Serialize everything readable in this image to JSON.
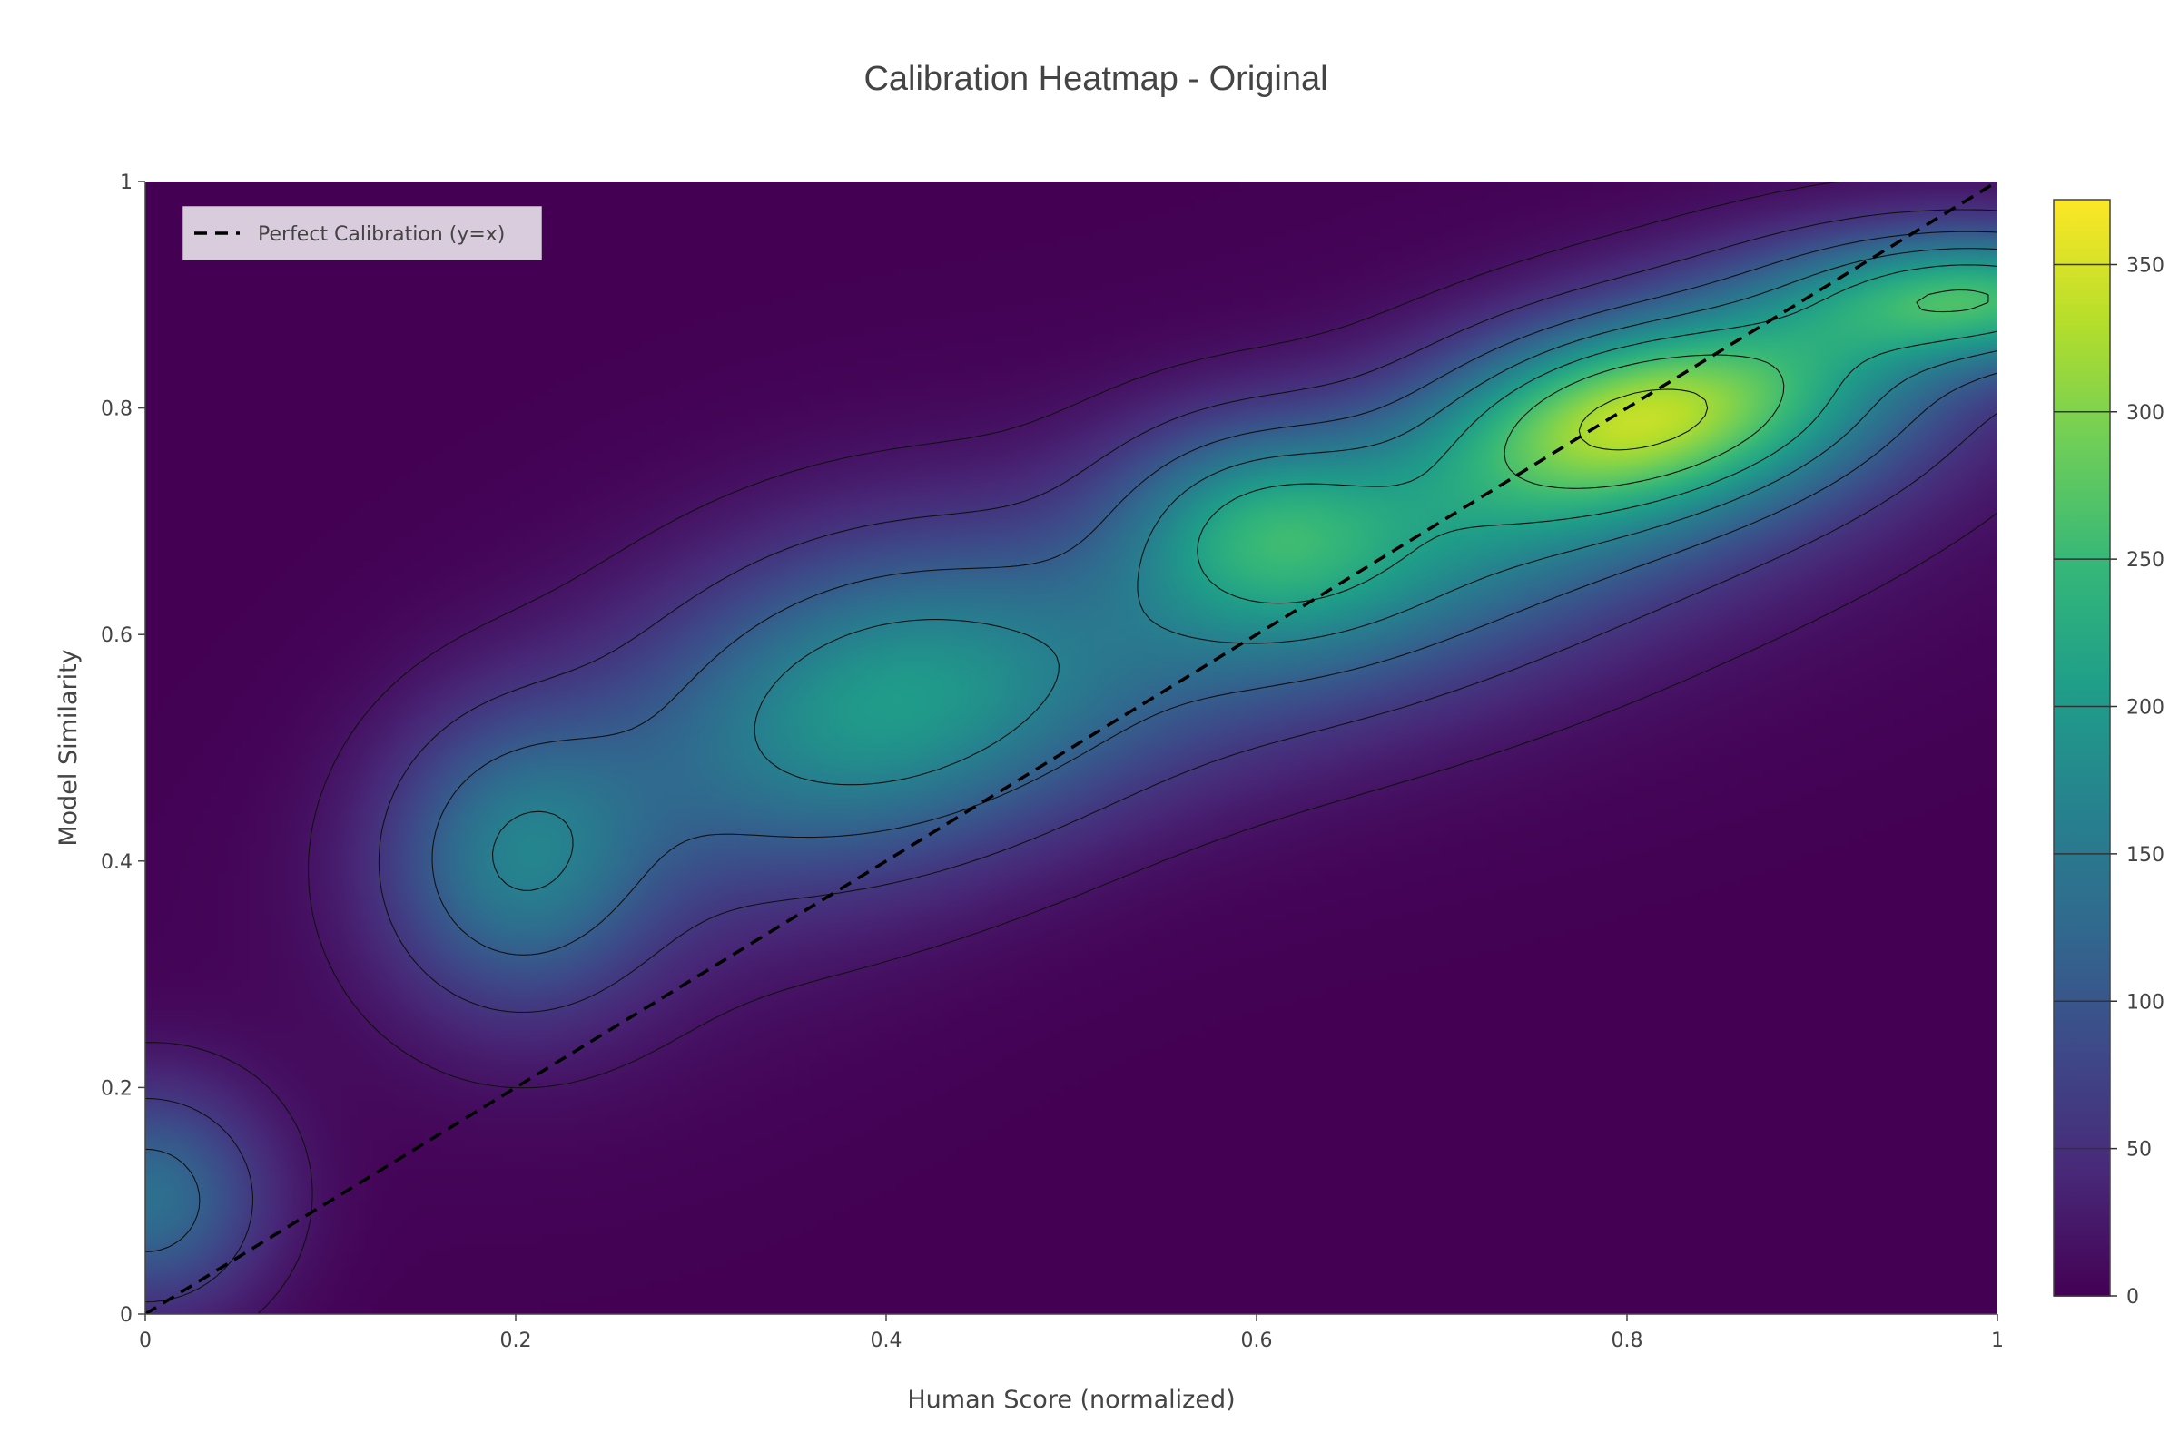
{
  "chart_data": {
    "type": "heatmap",
    "title": "Calibration Heatmap - Original",
    "xlabel": "Human Score (normalized)",
    "ylabel": "Model Similarity",
    "xlim": [
      0,
      1
    ],
    "ylim": [
      0,
      1
    ],
    "x_ticks": [
      "0",
      "0.2",
      "0.4",
      "0.6",
      "0.8",
      "1"
    ],
    "x_tick_values": [
      0,
      0.2,
      0.4,
      0.6,
      0.8,
      1
    ],
    "y_ticks": [
      "0",
      "0.2",
      "0.4",
      "0.6",
      "0.8",
      "1"
    ],
    "y_tick_values": [
      0,
      0.2,
      0.4,
      0.6,
      0.8,
      1
    ],
    "colorscale": "Viridis",
    "colorscale_stops": [
      "#440154",
      "#482878",
      "#3e4989",
      "#31688e",
      "#26828e",
      "#1f9e89",
      "#35b779",
      "#6ece58",
      "#b5de2b",
      "#fde725"
    ],
    "zlim": [
      0,
      372
    ],
    "colorbar_ticks": [
      "0",
      "50",
      "100",
      "150",
      "200",
      "250",
      "300",
      "350"
    ],
    "colorbar_tick_values": [
      0,
      50,
      100,
      150,
      200,
      250,
      300,
      350
    ],
    "contour_levels": [
      20,
      60,
      110,
      160,
      210,
      260,
      320
    ],
    "density_peaks": [
      {
        "x": 0.8,
        "y": 0.8,
        "value": 372
      },
      {
        "x": 0.6,
        "y": 0.7,
        "value": 305
      },
      {
        "x": 1.0,
        "y": 0.9,
        "value": 285
      },
      {
        "x": 0.4,
        "y": 0.55,
        "value": 160
      },
      {
        "x": 0.2,
        "y": 0.4,
        "value": 140
      },
      {
        "x": 0.0,
        "y": 0.1,
        "value": 140
      }
    ],
    "line_series": [
      {
        "name": "Perfect Calibration (y=x)",
        "x": [
          0,
          1
        ],
        "y": [
          0,
          1
        ],
        "style": "dashed",
        "color": "#000000"
      }
    ],
    "legend_placement": "top-left",
    "grid": false
  }
}
